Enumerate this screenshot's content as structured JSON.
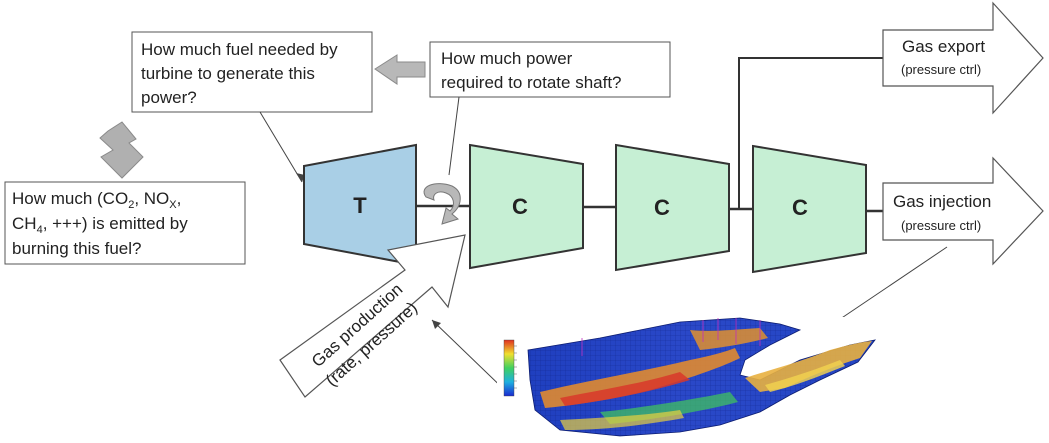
{
  "colors": {
    "turbine_fill": "#a9cfe6",
    "compressor_fill": "#c6efd4",
    "block_arrow_fill": "#b8b8b8",
    "line": "#333333"
  },
  "question_fuel": {
    "lines": [
      "How much fuel needed by",
      "turbine to generate this",
      "power?"
    ]
  },
  "question_power": {
    "lines": [
      "How much power",
      "required to rotate shaft?"
    ]
  },
  "question_emission": {
    "line1_a": "How much (CO",
    "line1_sub1": "2",
    "line1_b": ", NO",
    "line1_sub2": "X",
    "line1_c": ",",
    "line2_a": "CH",
    "line2_sub": "4",
    "line2_b": ", +++) is emitted by",
    "line3": "burning this fuel?"
  },
  "turbine": {
    "label": "T"
  },
  "compressors": [
    {
      "label": "C"
    },
    {
      "label": "C"
    },
    {
      "label": "C"
    }
  ],
  "gas_export": {
    "label": "Gas export",
    "sub": "(pressure ctrl)"
  },
  "gas_injection": {
    "label": "Gas injection",
    "sub": "(pressure ctrl)"
  },
  "gas_production": {
    "line1": "Gas production",
    "line2": "(rate, pressure)"
  }
}
